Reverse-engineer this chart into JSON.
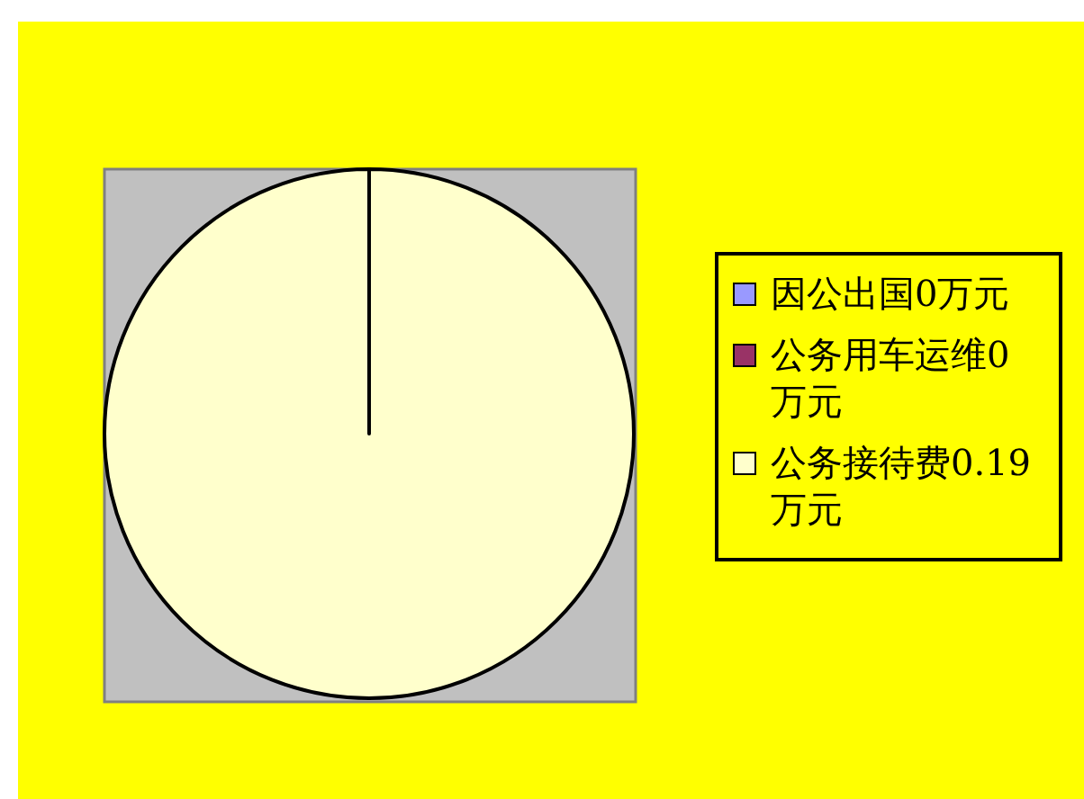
{
  "chart_data": {
    "type": "pie",
    "categories": [
      "因公出国0万元",
      "公务用车运维0万元",
      "公务接待费0.19万元"
    ],
    "values": [
      0,
      0,
      0.19
    ],
    "colors": [
      "#9999ff",
      "#993366",
      "#ffffcc"
    ],
    "legend": "right"
  }
}
